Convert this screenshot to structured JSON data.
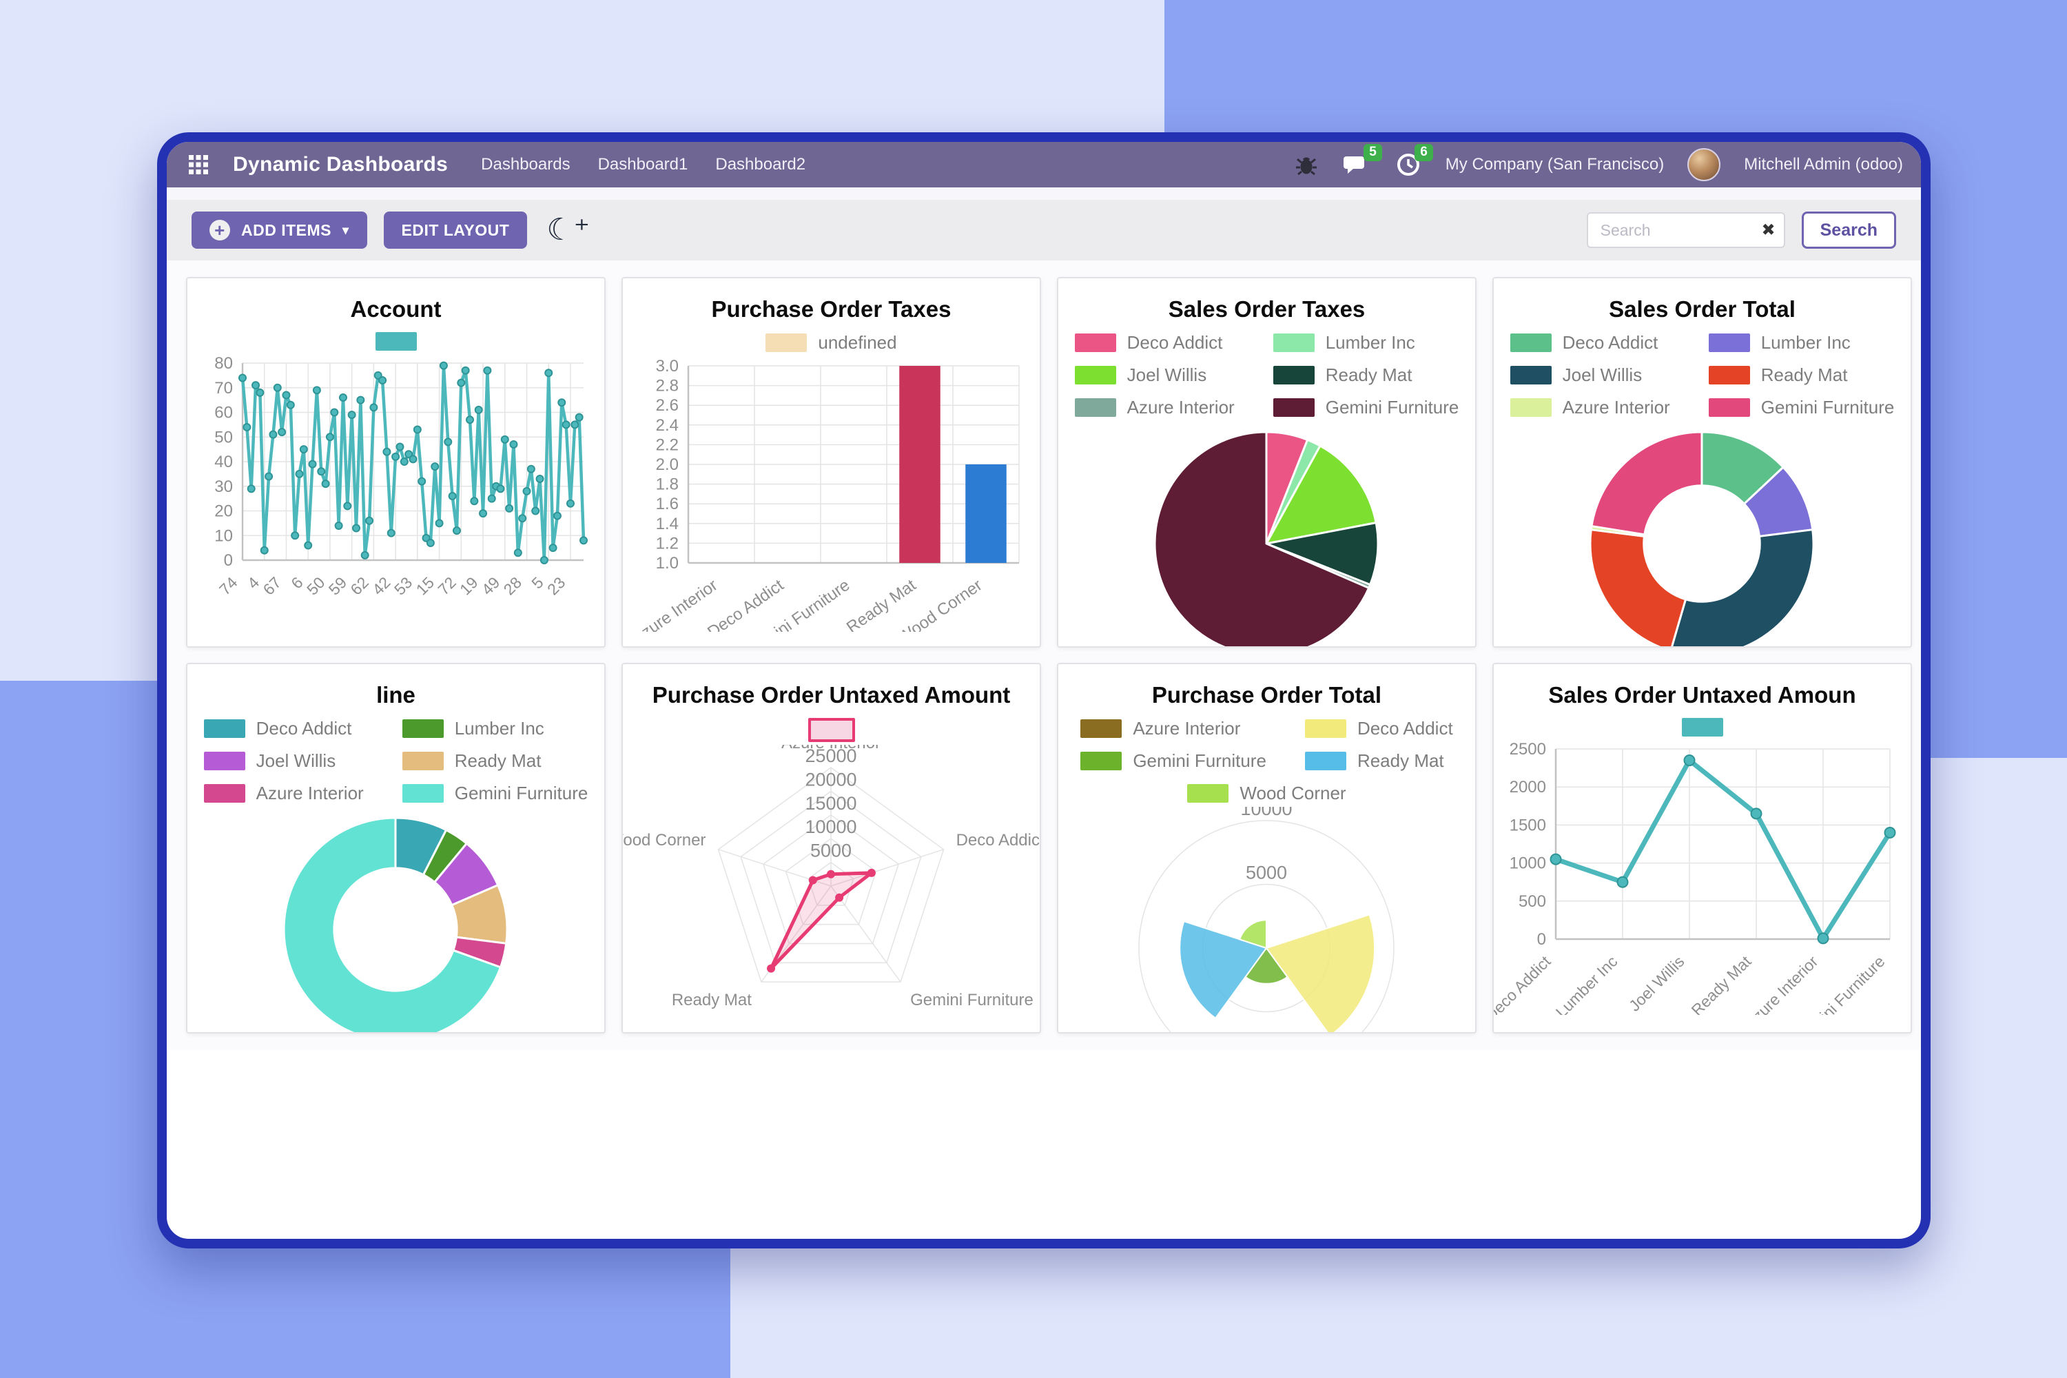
{
  "background": {
    "light": "#dfe5fb",
    "medium": "#8ca2f2",
    "window_border": "#2531b3"
  },
  "navbar": {
    "title": "Dynamic Dashboards",
    "menus": [
      "Dashboards",
      "Dashboard1",
      "Dashboard2"
    ],
    "chat_badge": "5",
    "activity_badge": "6",
    "company": "My Company (San Francisco)",
    "user": "Mitchell Admin (odoo)"
  },
  "toolbar": {
    "add_items_label": "ADD ITEMS",
    "edit_layout_label": "EDIT LAYOUT",
    "search_placeholder": "Search",
    "search_button_label": "Search"
  },
  "chart_data": [
    {
      "id": "account",
      "title": "Account",
      "type": "line",
      "legend": [
        {
          "color": "#4cb8bc",
          "label": ""
        }
      ],
      "labels": [
        "74",
        "4",
        "67",
        "6",
        "50",
        "59",
        "62",
        "42",
        "53",
        "15",
        "72",
        "19",
        "49",
        "28",
        "5",
        "23"
      ],
      "values": [
        74,
        54,
        29,
        71,
        68,
        4,
        34,
        51,
        70,
        52,
        67,
        63,
        10,
        35,
        45,
        6,
        39,
        69,
        36,
        31,
        50,
        60,
        14,
        66,
        22,
        59,
        13,
        65,
        2,
        16,
        62,
        75,
        73,
        44,
        11,
        42,
        46,
        40,
        43,
        41,
        53,
        32,
        9,
        7,
        38,
        15,
        79,
        48,
        26,
        12,
        72,
        77,
        57,
        24,
        61,
        19,
        77,
        25,
        30,
        29,
        49,
        21,
        47,
        3,
        17,
        28,
        37,
        20,
        33,
        0,
        76,
        5,
        18,
        64,
        55,
        23,
        55,
        58,
        8
      ],
      "ylim": [
        0,
        80
      ],
      "ystep": 10,
      "color": "#4cb8bc",
      "grid": true
    },
    {
      "id": "po-taxes",
      "title": "Purchase Order Taxes",
      "type": "bar",
      "legend": [
        {
          "color": "#f5deb3",
          "label": "undefined"
        }
      ],
      "categories": [
        "Azure Interior",
        "Deco Addict",
        "Gemini Furniture",
        "Ready Mat",
        "Wood Corner"
      ],
      "values": [
        null,
        null,
        null,
        3.0,
        2.0
      ],
      "colors": [
        "#c9345a",
        "#c9345a",
        "#c9345a",
        "#c9345a",
        "#2d7cd4"
      ],
      "ylim": [
        1.0,
        3.0
      ],
      "ystep": 0.2,
      "grid": true
    },
    {
      "id": "so-taxes",
      "title": "Sales Order Taxes",
      "type": "pie",
      "legend": [
        {
          "color": "#ea5585",
          "label": "Deco Addict"
        },
        {
          "color": "#8ce8a9",
          "label": "Lumber Inc"
        },
        {
          "color": "#7ddf30",
          "label": "Joel Willis"
        },
        {
          "color": "#17453a",
          "label": "Ready Mat"
        },
        {
          "color": "#7fa99a",
          "label": "Azure Interior"
        },
        {
          "color": "#5e1d35",
          "label": "Gemini Furniture"
        }
      ],
      "labels": [
        "Deco Addict",
        "Lumber Inc",
        "Joel Willis",
        "Ready Mat",
        "Azure Interior",
        "Gemini Furniture"
      ],
      "values": [
        6,
        2,
        14,
        9,
        0.5,
        68.5
      ],
      "colors": [
        "#ea5585",
        "#8ce8a9",
        "#7ddf30",
        "#17453a",
        "#7fa99a",
        "#5e1d35"
      ],
      "inner": 0
    },
    {
      "id": "so-total",
      "title": "Sales Order Total",
      "type": "pie",
      "legend": [
        {
          "color": "#5cc08a",
          "label": "Deco Addict"
        },
        {
          "color": "#7a70d8",
          "label": "Lumber Inc"
        },
        {
          "color": "#1e4f63",
          "label": "Joel Willis"
        },
        {
          "color": "#e44425",
          "label": "Ready Mat"
        },
        {
          "color": "#daf09a",
          "label": "Azure Interior"
        },
        {
          "color": "#e3487d",
          "label": "Gemini Furniture"
        }
      ],
      "labels": [
        "Deco Addict",
        "Lumber Inc",
        "Joel Willis",
        "Ready Mat",
        "Azure Interior",
        "Gemini Furniture"
      ],
      "values": [
        13,
        10,
        31.5,
        22.5,
        0.5,
        22.5
      ],
      "colors": [
        "#5cc08a",
        "#7a70d8",
        "#1e4f63",
        "#e44425",
        "#daf09a",
        "#e3487d"
      ],
      "inner": 0.52
    },
    {
      "id": "line",
      "title": "line",
      "type": "pie",
      "legend": [
        {
          "color": "#3aa8b4",
          "label": "Deco Addict"
        },
        {
          "color": "#4c9a2c",
          "label": "Lumber Inc"
        },
        {
          "color": "#b55bd6",
          "label": "Joel Willis"
        },
        {
          "color": "#e4bc7e",
          "label": "Ready Mat"
        },
        {
          "color": "#d4488f",
          "label": "Azure Interior"
        },
        {
          "color": "#62e2d3",
          "label": "Gemini Furniture"
        }
      ],
      "labels": [
        "Deco Addict",
        "Lumber Inc",
        "Joel Willis",
        "Ready Mat",
        "Azure Interior",
        "Gemini Furniture"
      ],
      "values": [
        7.5,
        3.5,
        7.5,
        8.5,
        3.5,
        69.5
      ],
      "colors": [
        "#3aa8b4",
        "#4c9a2c",
        "#b55bd6",
        "#e4bc7e",
        "#d4488f",
        "#62e2d3"
      ],
      "inner": 0.55
    },
    {
      "id": "po-untaxed",
      "title": "Purchase Order Untaxed Amount",
      "type": "radar",
      "legend": [
        {
          "color": "#f8d7e4",
          "border": "#e73b73",
          "label": ""
        }
      ],
      "axes": [
        "Azure Interior",
        "Deco Addict",
        "Gemini Furniture",
        "Ready Mat",
        "Wood Corner"
      ],
      "values": [
        2500,
        9000,
        3000,
        21500,
        4000
      ],
      "rmax": 25000,
      "rstep": 5000,
      "color": "#e73b73"
    },
    {
      "id": "po-total",
      "title": "Purchase Order Total",
      "type": "polar",
      "legend": [
        {
          "color": "#8a6d20",
          "label": "Azure Interior"
        },
        {
          "color": "#f2ea7a",
          "label": "Deco Addict"
        },
        {
          "color": "#6cb32b",
          "label": "Gemini Furniture"
        },
        {
          "color": "#55bde8",
          "label": "Ready Mat"
        },
        {
          "color": "#a6e04e",
          "label": "Wood Corner"
        }
      ],
      "labels": [
        "Azure Interior",
        "Deco Addict",
        "Gemini Furniture",
        "Ready Mat",
        "Wood Corner"
      ],
      "values": [
        0,
        8500,
        2800,
        6800,
        2200
      ],
      "colors": [
        "#8a6d20",
        "#f2ea7a",
        "#6cb32b",
        "#55bde8",
        "#a6e04e"
      ],
      "ticks": [
        5000,
        10000
      ],
      "rmax": 10000
    },
    {
      "id": "so-untaxed",
      "title": "Sales Order Untaxed Amoun",
      "type": "line2",
      "legend": [
        {
          "color": "#4cb8bc",
          "label": ""
        }
      ],
      "categories": [
        "Deco Addict",
        "Lumber Inc",
        "Joel Willis",
        "Ready Mat",
        "Azure Interior",
        "Gemini Furniture"
      ],
      "values": [
        1050,
        750,
        2350,
        1650,
        10,
        1400
      ],
      "ylim": [
        0,
        2500
      ],
      "ystep": 500,
      "color": "#4cb8bc",
      "grid": true
    }
  ]
}
